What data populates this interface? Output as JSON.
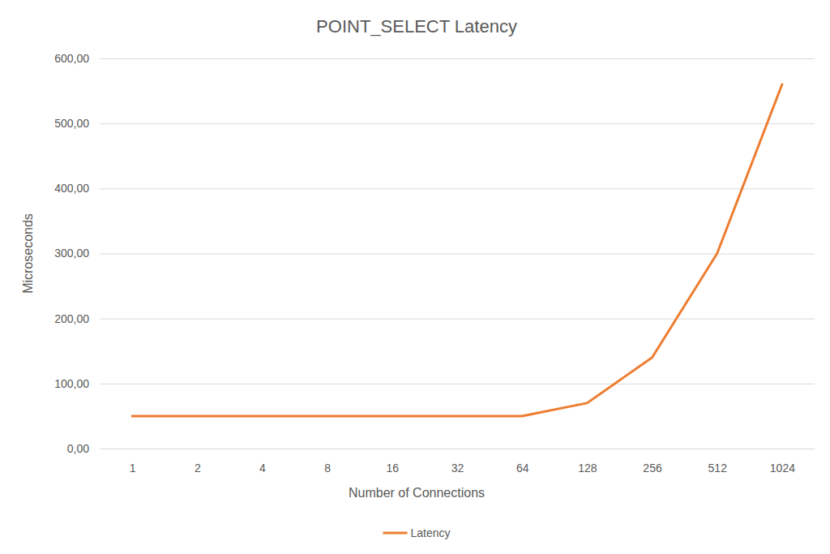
{
  "chart_data": {
    "type": "line",
    "title": "POINT_SELECT Latency",
    "x_label": "Number of Connections",
    "y_label": "Microseconds",
    "categories": [
      "1",
      "2",
      "4",
      "8",
      "16",
      "32",
      "64",
      "128",
      "256",
      "512",
      "1024"
    ],
    "series": [
      {
        "name": "Latency",
        "color": "#ed7d31",
        "values": [
          50,
          50,
          50,
          50,
          50,
          50,
          50,
          70,
          140,
          300,
          560
        ]
      }
    ],
    "ylim": [
      0,
      600
    ],
    "yticks": [
      {
        "value": 0,
        "label": "0,00"
      },
      {
        "value": 100,
        "label": "100,00"
      },
      {
        "value": 200,
        "label": "200,00"
      },
      {
        "value": 300,
        "label": "300,00"
      },
      {
        "value": 400,
        "label": "400,00"
      },
      {
        "value": 500,
        "label": "500,00"
      },
      {
        "value": 600,
        "label": "600,00"
      }
    ],
    "grid": true,
    "legend": "bottom"
  }
}
